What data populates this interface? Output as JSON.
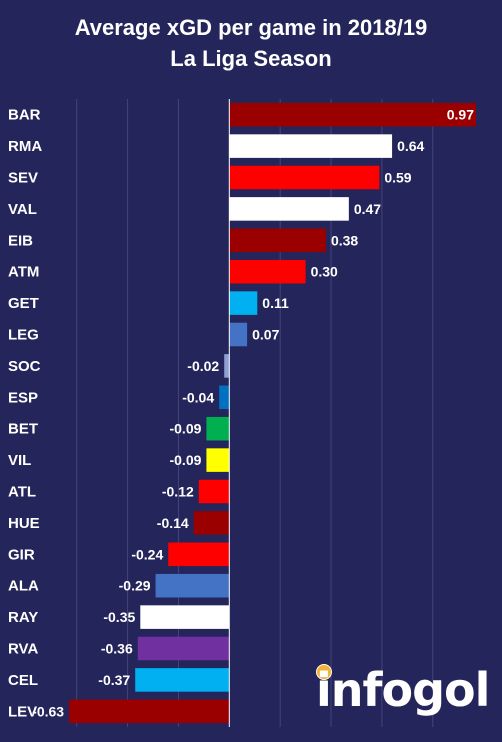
{
  "chart_data": {
    "type": "bar",
    "orientation": "horizontal",
    "title": "Average xGD per game in 2018/19",
    "subtitle": "La Liga Season",
    "categories": [
      "BAR",
      "RMA",
      "SEV",
      "VAL",
      "EIB",
      "ATM",
      "GET",
      "LEG",
      "SOC",
      "ESP",
      "BET",
      "VIL",
      "ATL",
      "HUE",
      "GIR",
      "ALA",
      "RAY",
      "RVA",
      "CEL",
      "LEV"
    ],
    "values": [
      0.97,
      0.64,
      0.59,
      0.47,
      0.38,
      0.3,
      0.11,
      0.07,
      -0.02,
      -0.04,
      -0.09,
      -0.09,
      -0.12,
      -0.14,
      -0.24,
      -0.29,
      -0.35,
      -0.36,
      -0.37,
      -0.63
    ],
    "value_labels": [
      "0.97",
      "0.64",
      "0.59",
      "0.47",
      "0.38",
      "0.30",
      "0.11",
      "0.07",
      "-0.02",
      "-0.04",
      "-0.09",
      "-0.09",
      "-0.12",
      "-0.14",
      "-0.24",
      "-0.29",
      "-0.35",
      "-0.36",
      "-0.37",
      "-0.63"
    ],
    "colors": [
      "#9b0000",
      "#ffffff",
      "#ff0000",
      "#ffffff",
      "#9b0000",
      "#ff0000",
      "#00b0f0",
      "#4472c4",
      "#8e9fd6",
      "#0070c0",
      "#00b050",
      "#ffff00",
      "#ff0000",
      "#9b0000",
      "#ff0000",
      "#4472c4",
      "#ffffff",
      "#7030a0",
      "#00b0f0",
      "#9b0000"
    ],
    "xlim": [
      -0.65,
      0.97
    ],
    "grid": true,
    "legend": "none"
  },
  "branding": {
    "logo_text": "infogol"
  },
  "style": {
    "background": "#24255a",
    "text_color": "#ffffff",
    "grid_color": "#43457a"
  }
}
